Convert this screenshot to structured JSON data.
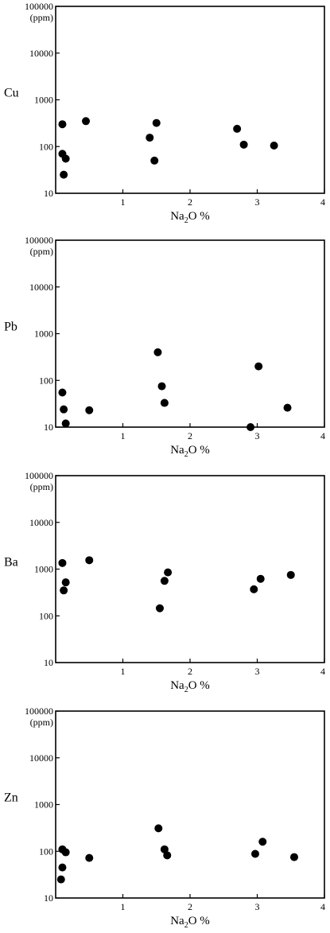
{
  "chart_data": [
    {
      "type": "scatter",
      "ylabel": "Cu",
      "yunit": "(ppm)",
      "xlabel_main": "Na",
      "xlabel_sub": "2",
      "xlabel_rest": "O %",
      "y_scale": "log",
      "xlim": [
        0,
        4
      ],
      "ylim": [
        10,
        100000
      ],
      "x_ticks": [
        "1",
        "2",
        "3",
        "4"
      ],
      "y_ticks": [
        "10",
        "100",
        "1000",
        "10000",
        "100000"
      ],
      "grid": false,
      "points": [
        {
          "x": 0.1,
          "y": 300
        },
        {
          "x": 0.45,
          "y": 350
        },
        {
          "x": 0.1,
          "y": 70
        },
        {
          "x": 0.15,
          "y": 55
        },
        {
          "x": 0.12,
          "y": 25
        },
        {
          "x": 1.4,
          "y": 155
        },
        {
          "x": 1.5,
          "y": 320
        },
        {
          "x": 1.47,
          "y": 50
        },
        {
          "x": 2.7,
          "y": 240
        },
        {
          "x": 2.8,
          "y": 110
        },
        {
          "x": 3.25,
          "y": 105
        }
      ]
    },
    {
      "type": "scatter",
      "ylabel": "Pb",
      "yunit": "(ppm)",
      "xlabel_main": "Na",
      "xlabel_sub": "2",
      "xlabel_rest": "O %",
      "y_scale": "log",
      "xlim": [
        0,
        4
      ],
      "ylim": [
        10,
        100000
      ],
      "x_ticks": [
        "1",
        "2",
        "3",
        "4"
      ],
      "y_ticks": [
        "10",
        "100",
        "1000",
        "10000",
        "100000"
      ],
      "grid": false,
      "points": [
        {
          "x": 0.1,
          "y": 55
        },
        {
          "x": 0.12,
          "y": 24
        },
        {
          "x": 0.15,
          "y": 12
        },
        {
          "x": 0.5,
          "y": 23
        },
        {
          "x": 1.52,
          "y": 400
        },
        {
          "x": 1.58,
          "y": 75
        },
        {
          "x": 1.62,
          "y": 33
        },
        {
          "x": 2.9,
          "y": 10
        },
        {
          "x": 3.02,
          "y": 200
        },
        {
          "x": 3.45,
          "y": 26
        }
      ]
    },
    {
      "type": "scatter",
      "ylabel": "Ba",
      "yunit": "(ppm)",
      "xlabel_main": "Na",
      "xlabel_sub": "2",
      "xlabel_rest": "O %",
      "y_scale": "log",
      "xlim": [
        0,
        4
      ],
      "ylim": [
        10,
        100000
      ],
      "x_ticks": [
        "1",
        "2",
        "3",
        "4"
      ],
      "y_ticks": [
        "10",
        "100",
        "1000",
        "10000",
        "100000"
      ],
      "grid": false,
      "points": [
        {
          "x": 0.1,
          "y": 1350
        },
        {
          "x": 0.15,
          "y": 520
        },
        {
          "x": 0.12,
          "y": 350
        },
        {
          "x": 0.5,
          "y": 1550
        },
        {
          "x": 1.55,
          "y": 145
        },
        {
          "x": 1.62,
          "y": 560
        },
        {
          "x": 1.67,
          "y": 850
        },
        {
          "x": 2.95,
          "y": 370
        },
        {
          "x": 3.05,
          "y": 620
        },
        {
          "x": 3.5,
          "y": 750
        }
      ]
    },
    {
      "type": "scatter",
      "ylabel": "Zn",
      "yunit": "(ppm)",
      "xlabel_main": "Na",
      "xlabel_sub": "2",
      "xlabel_rest": "O %",
      "y_scale": "log",
      "xlim": [
        0,
        4
      ],
      "ylim": [
        10,
        100000
      ],
      "x_ticks": [
        "1",
        "2",
        "3",
        "4"
      ],
      "y_ticks": [
        "10",
        "100",
        "1000",
        "10000",
        "100000"
      ],
      "grid": false,
      "points": [
        {
          "x": 0.1,
          "y": 110
        },
        {
          "x": 0.15,
          "y": 95
        },
        {
          "x": 0.1,
          "y": 45
        },
        {
          "x": 0.08,
          "y": 25
        },
        {
          "x": 0.5,
          "y": 72
        },
        {
          "x": 1.53,
          "y": 310
        },
        {
          "x": 1.62,
          "y": 110
        },
        {
          "x": 1.66,
          "y": 82
        },
        {
          "x": 2.97,
          "y": 88
        },
        {
          "x": 3.08,
          "y": 160
        },
        {
          "x": 3.55,
          "y": 75
        }
      ]
    }
  ]
}
